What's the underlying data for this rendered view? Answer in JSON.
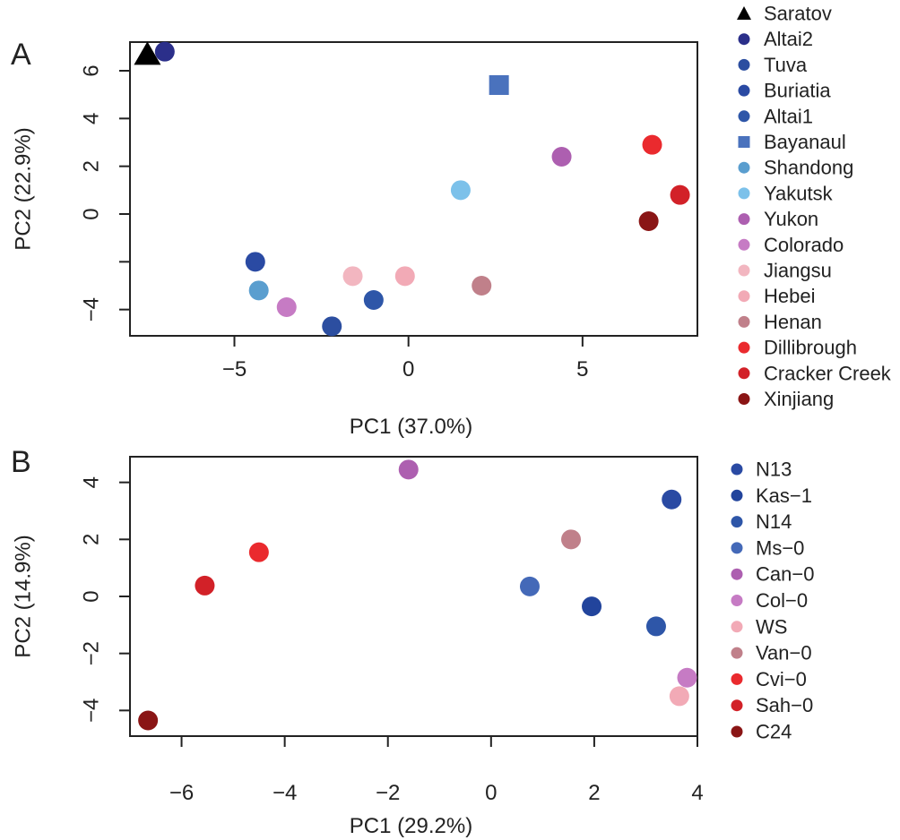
{
  "panels": [
    {
      "letter": "A"
    },
    {
      "letter": "B"
    }
  ],
  "chart_data": [
    {
      "type": "scatter",
      "xlabel": "PC1 (37.0%)",
      "ylabel": "PC2 (22.9%)",
      "xlim": [
        -8.0,
        8.3
      ],
      "ylim": [
        -5.1,
        7.2
      ],
      "xticks": [
        -5,
        0,
        5
      ],
      "yticks": [
        -4,
        -2,
        0,
        2,
        4,
        6
      ],
      "ytick_labels": [
        "−4",
        "",
        "0",
        "2",
        "4",
        "6"
      ],
      "xtick_labels": [
        "−5",
        "0",
        "5"
      ],
      "grid": false,
      "legend_position": "right",
      "series": [
        {
          "name": "Saratov",
          "x": -7.5,
          "y": 6.7,
          "color": "#000000",
          "marker": "triangle"
        },
        {
          "name": "Altai2",
          "x": -7.0,
          "y": 6.8,
          "color": "#2b2f8a",
          "marker": "circle"
        },
        {
          "name": "Tuva",
          "x": -2.2,
          "y": -4.7,
          "color": "#2c4ea0",
          "marker": "circle"
        },
        {
          "name": "Buriatia",
          "x": -4.4,
          "y": -2.0,
          "color": "#2a4aa3",
          "marker": "circle"
        },
        {
          "name": "Altai1",
          "x": -1.0,
          "y": -3.6,
          "color": "#2e56a8",
          "marker": "circle"
        },
        {
          "name": "Bayanaul",
          "x": 2.6,
          "y": 5.4,
          "color": "#4a72bd",
          "marker": "square"
        },
        {
          "name": "Shandong",
          "x": -4.3,
          "y": -3.2,
          "color": "#5a9ecf",
          "marker": "circle"
        },
        {
          "name": "Yakutsk",
          "x": 1.5,
          "y": 1.0,
          "color": "#7cc1ea",
          "marker": "circle"
        },
        {
          "name": "Yukon",
          "x": 4.4,
          "y": 2.4,
          "color": "#ad5fb0",
          "marker": "circle"
        },
        {
          "name": "Colorado",
          "x": -3.5,
          "y": -3.9,
          "color": "#c67bc4",
          "marker": "circle"
        },
        {
          "name": "Jiangsu",
          "x": -1.6,
          "y": -2.6,
          "color": "#f2b6c0",
          "marker": "circle"
        },
        {
          "name": "Hebei",
          "x": -0.1,
          "y": -2.6,
          "color": "#f2aab6",
          "marker": "circle"
        },
        {
          "name": "Henan",
          "x": 2.1,
          "y": -3.0,
          "color": "#c0808a",
          "marker": "circle"
        },
        {
          "name": "Dillibrough",
          "x": 7.0,
          "y": 2.9,
          "color": "#ea2a2e",
          "marker": "circle"
        },
        {
          "name": "Cracker Creek",
          "x": 7.8,
          "y": 0.8,
          "color": "#d22128",
          "marker": "circle"
        },
        {
          "name": "Xinjiang",
          "x": 6.9,
          "y": -0.3,
          "color": "#8a1515",
          "marker": "circle"
        }
      ]
    },
    {
      "type": "scatter",
      "xlabel": "PC1 (29.2%)",
      "ylabel": "PC2 (14.9%)",
      "xlim": [
        -7.0,
        4.0
      ],
      "ylim": [
        -4.9,
        4.9
      ],
      "xticks": [
        -6,
        -4,
        -2,
        0,
        2,
        4
      ],
      "xtick_labels": [
        "−6",
        "−4",
        "−2",
        "0",
        "2",
        "4"
      ],
      "yticks": [
        -4,
        -2,
        0,
        2,
        4
      ],
      "ytick_labels": [
        "−4",
        "−2",
        "0",
        "2",
        "4"
      ],
      "grid": false,
      "legend_position": "right",
      "series": [
        {
          "name": "N13",
          "x": 3.5,
          "y": 3.4,
          "color": "#2a4aa3",
          "marker": "circle"
        },
        {
          "name": "Kas−1",
          "x": 1.95,
          "y": -0.35,
          "color": "#22449c",
          "marker": "circle"
        },
        {
          "name": "N14",
          "x": 3.2,
          "y": -1.05,
          "color": "#2e56a8",
          "marker": "circle"
        },
        {
          "name": "Ms−0",
          "x": 0.75,
          "y": 0.35,
          "color": "#4469b8",
          "marker": "circle"
        },
        {
          "name": "Can−0",
          "x": -1.6,
          "y": 4.45,
          "color": "#ad5fb0",
          "marker": "circle"
        },
        {
          "name": "Col−0",
          "x": 3.8,
          "y": -2.85,
          "color": "#c67bc4",
          "marker": "circle"
        },
        {
          "name": "WS",
          "x": 3.65,
          "y": -3.5,
          "color": "#f2aab6",
          "marker": "circle"
        },
        {
          "name": "Van−0",
          "x": 1.55,
          "y": 2.0,
          "color": "#c0808a",
          "marker": "circle"
        },
        {
          "name": "Cvi−0",
          "x": -4.5,
          "y": 1.55,
          "color": "#ea2a2e",
          "marker": "circle"
        },
        {
          "name": "Sah−0",
          "x": -5.55,
          "y": 0.38,
          "color": "#d22128",
          "marker": "circle"
        },
        {
          "name": "C24",
          "x": -6.65,
          "y": -4.35,
          "color": "#8a1515",
          "marker": "circle"
        }
      ]
    }
  ]
}
